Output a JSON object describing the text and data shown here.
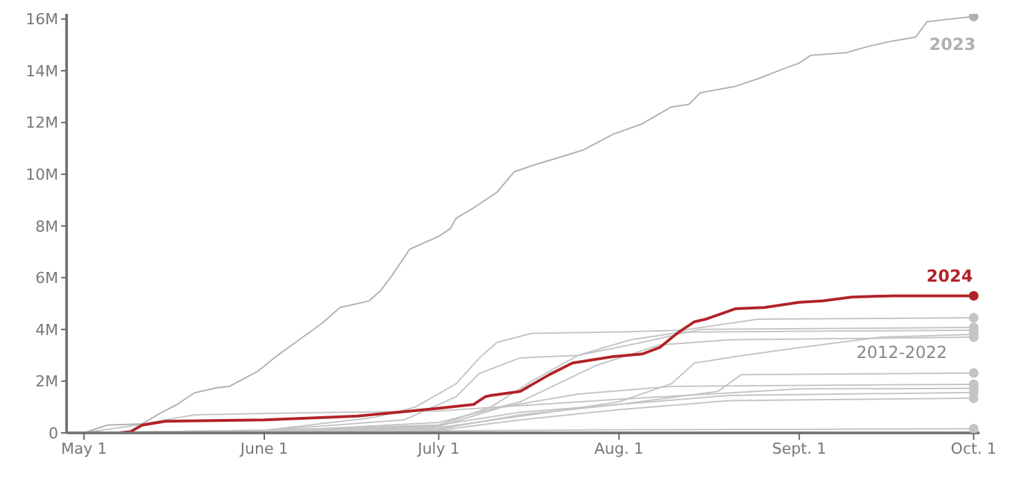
{
  "chart_data": {
    "type": "line",
    "xlim": [
      "--04-28",
      "--10-02"
    ],
    "xticks": [
      {
        "value": "--05-01",
        "label": "May 1"
      },
      {
        "value": "--06-01",
        "label": "June 1"
      },
      {
        "value": "--07-01",
        "label": "July 1"
      },
      {
        "value": "--08-01",
        "label": "Aug. 1"
      },
      {
        "value": "--09-01",
        "label": "Sept. 1"
      },
      {
        "value": "--10-01",
        "label": "Oct. 1"
      }
    ],
    "ylim": [
      0,
      16.2
    ],
    "yticks": [
      0,
      {
        "value": 2,
        "label": "2M"
      },
      {
        "value": 4,
        "label": "4M"
      },
      {
        "value": 6,
        "label": "6M"
      },
      {
        "value": 8,
        "label": "8M"
      },
      {
        "value": 10,
        "label": "10M"
      },
      {
        "value": 12,
        "label": "12M"
      },
      {
        "value": 14,
        "label": "14M"
      },
      {
        "value": 16,
        "label": "16M"
      }
    ],
    "annotations": [
      "2012-2022"
    ],
    "series": [
      {
        "color": "#c4c4c4",
        "x": [
          "--05-01",
          "--06-01",
          "--06-20",
          "--06-27",
          "--07-04",
          "--07-08",
          "--07-11",
          "--07-17",
          "--08-01",
          "--08-12",
          "--08-25",
          "--10-01"
        ],
        "values": [
          0,
          0.1,
          0.6,
          1.0,
          1.9,
          2.9,
          3.5,
          3.85,
          3.9,
          3.97,
          4.4,
          4.45
        ]
      },
      {
        "color": "#c4c4c4",
        "x": [
          "--05-01",
          "--06-01",
          "--06-25",
          "--07-04",
          "--07-08",
          "--07-15",
          "--07-25",
          "--08-05",
          "--08-15",
          "--10-01"
        ],
        "values": [
          0,
          0.1,
          0.5,
          1.4,
          2.3,
          2.9,
          3.0,
          3.5,
          4.0,
          4.08
        ]
      },
      {
        "color": "#c4c4c4",
        "x": [
          "--05-01",
          "--06-01",
          "--07-01",
          "--07-10",
          "--07-17",
          "--07-25",
          "--08-03",
          "--08-12",
          "--10-01"
        ],
        "values": [
          0,
          0.05,
          0.3,
          1.0,
          2.0,
          3.0,
          3.6,
          3.9,
          3.97
        ]
      },
      {
        "color": "#c4c4c4",
        "x": [
          "--05-01",
          "--06-01",
          "--07-01",
          "--07-20",
          "--08-01",
          "--08-10",
          "--08-14",
          "--08-21",
          "--09-01",
          "--09-15",
          "--10-01"
        ],
        "values": [
          0,
          0.05,
          0.2,
          0.8,
          1.2,
          1.9,
          2.7,
          2.95,
          3.3,
          3.7,
          3.81
        ]
      },
      {
        "color": "#c4c4c4",
        "x": [
          "--05-01",
          "--06-01",
          "--07-01",
          "--07-15",
          "--07-28",
          "--08-08",
          "--08-20",
          "--10-01"
        ],
        "values": [
          0,
          0.05,
          0.4,
          1.2,
          2.6,
          3.4,
          3.6,
          3.7
        ]
      },
      {
        "color": "#c4c4c4",
        "x": [
          "--05-01",
          "--06-01",
          "--07-01",
          "--07-15",
          "--08-01",
          "--08-18",
          "--08-22",
          "--10-01"
        ],
        "values": [
          0,
          0.1,
          0.3,
          0.8,
          1.1,
          1.6,
          2.25,
          2.31
        ]
      },
      {
        "color": "#c4c4c4",
        "x": [
          "--05-01",
          "--06-01",
          "--07-01",
          "--07-12",
          "--07-25",
          "--08-10",
          "--10-01"
        ],
        "values": [
          0,
          0.05,
          0.25,
          1.0,
          1.5,
          1.8,
          1.88
        ]
      },
      {
        "color": "#c4c4c4",
        "x": [
          "--05-01",
          "--05-10",
          "--05-20",
          "--06-01",
          "--07-01",
          "--08-01",
          "--09-01",
          "--10-01"
        ],
        "values": [
          0,
          0.3,
          0.7,
          0.75,
          0.85,
          1.3,
          1.7,
          1.72
        ]
      },
      {
        "color": "#c4c4c4",
        "x": [
          "--05-01",
          "--06-01",
          "--07-01",
          "--07-15",
          "--08-01",
          "--08-20",
          "--10-01"
        ],
        "values": [
          0,
          0.02,
          0.15,
          0.7,
          1.1,
          1.45,
          1.56
        ]
      },
      {
        "color": "#c4c4c4",
        "x": [
          "--05-01",
          "--06-01",
          "--07-01",
          "--07-15",
          "--08-01",
          "--08-20",
          "--10-01"
        ],
        "values": [
          0,
          0.01,
          0.1,
          0.5,
          0.9,
          1.25,
          1.34
        ]
      },
      {
        "color": "#c4c4c4",
        "x": [
          "--05-01",
          "--06-01",
          "--07-01",
          "--08-01",
          "--10-01"
        ],
        "values": [
          0,
          0.02,
          0.08,
          0.12,
          0.16
        ]
      },
      {
        "name": "2023",
        "color": "#b0b0b0",
        "x": [
          "--05-01",
          "--05-05",
          "--05-11",
          "--05-14",
          "--05-17",
          "--05-20",
          "--05-24",
          "--05-26",
          "--05-31",
          "--06-03",
          "--06-07",
          "--06-11",
          "--06-14",
          "--06-19",
          "--06-21",
          "--06-23",
          "--06-26",
          "--07-01",
          "--07-03",
          "--07-04",
          "--07-07",
          "--07-11",
          "--07-14",
          "--07-18",
          "--07-21",
          "--07-26",
          "--07-31",
          "--08-05",
          "--08-10",
          "--08-13",
          "--08-15",
          "--08-21",
          "--08-25",
          "--08-29",
          "--09-01",
          "--09-03",
          "--09-09",
          "--09-13",
          "--09-17",
          "--09-21",
          "--09-23",
          "--10-01"
        ],
        "values": [
          0,
          0.3,
          0.35,
          0.75,
          1.1,
          1.55,
          1.75,
          1.8,
          2.4,
          2.95,
          3.6,
          4.25,
          4.85,
          5.1,
          5.5,
          6.1,
          7.1,
          7.6,
          7.9,
          8.3,
          8.7,
          9.3,
          10.1,
          10.4,
          10.6,
          10.95,
          11.55,
          11.95,
          12.6,
          12.7,
          13.15,
          13.4,
          13.7,
          14.05,
          14.3,
          14.6,
          14.7,
          14.95,
          15.15,
          15.3,
          15.9,
          16.1
        ]
      },
      {
        "name": "2024",
        "color": "#b22228",
        "x": [
          "--05-07",
          "--05-09",
          "--05-11",
          "--05-15",
          "--06-01",
          "--06-17",
          "--06-24",
          "--07-01",
          "--07-07",
          "--07-09",
          "--07-10",
          "--07-15",
          "--07-20",
          "--07-24",
          "--07-31",
          "--08-05",
          "--08-08",
          "--08-11",
          "--08-14",
          "--08-16",
          "--08-21",
          "--08-26",
          "--09-01",
          "--09-05",
          "--09-10",
          "--09-17",
          "--10-01"
        ],
        "values": [
          0,
          0.05,
          0.3,
          0.45,
          0.5,
          0.65,
          0.8,
          0.95,
          1.1,
          1.4,
          1.45,
          1.6,
          2.25,
          2.7,
          2.95,
          3.05,
          3.3,
          3.85,
          4.3,
          4.4,
          4.8,
          4.85,
          5.05,
          5.1,
          5.25,
          5.3,
          5.3
        ]
      }
    ]
  }
}
